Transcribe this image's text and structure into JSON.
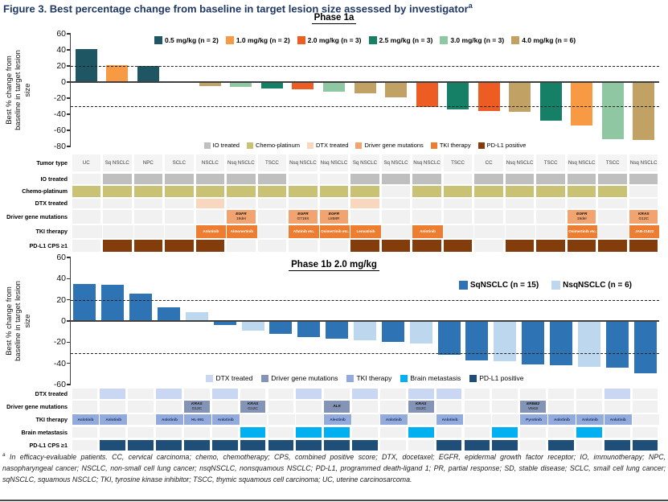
{
  "title": {
    "text": "Figure 3. Best percentage change from baseline in target lesion size assessed by investigator",
    "superscript": "a"
  },
  "footnote": {
    "superscript": "a",
    "text": "In efficacy-evaluable patients. CC, cervical carcinoma; chemo, chemotherapy; CPS, combined positive score; DTX, docetaxel; EGFR, epidermal growth factor receptor; IO, immunotherapy; NPC, nasopharyngeal cancer; NSCLC, non-small cell lung cancer; nsqNSCLC, nonsquamous NSCLC; PD-L1, programmed death-ligand 1; PR, partial response; SD, stable disease; SCLC, small cell lung cancer; sqNSCLC, squamous NSCLC; TKI, tyrosine kinase inhibitor; TSCC, thymic squamous cell carcinoma; UC, uterine carcinosarcoma."
  },
  "colors": {
    "title_navy": "#1F3864",
    "empty_cell": "#F1F1F1",
    "axis": "#404040"
  },
  "chart_data": [
    {
      "id": "phase1a",
      "type": "bar",
      "title": "Phase 1a",
      "ylabel": "Best % change from\nbaseline in target lesion\nsize",
      "ylim": [
        -80,
        60
      ],
      "yticks": [
        60,
        40,
        20,
        0,
        -20,
        -40,
        -60,
        -80
      ],
      "reference_lines": [
        20,
        -30
      ],
      "grid": false,
      "legend_position": "top-center",
      "dose_legend": [
        {
          "label": "0.5 mg/kg (n = 2)",
          "dose": "0.5",
          "color": "#1F5664"
        },
        {
          "label": "1.0 mg/kg (n = 2)",
          "dose": "1.0",
          "color": "#F79A43"
        },
        {
          "label": "2.0 mg/kg (n = 3)",
          "dose": "2.0",
          "color": "#EC5C23"
        },
        {
          "label": "2.5 mg/kg (n = 3)",
          "dose": "2.5",
          "color": "#158066"
        },
        {
          "label": "3.0 mg/kg (n = 3)",
          "dose": "3.0",
          "color": "#8FC7A3"
        },
        {
          "label": "4.0 mg/kg (n = 6)",
          "dose": "4.0",
          "color": "#C2A264"
        }
      ],
      "bars": [
        {
          "value": 41,
          "dose": "0.5"
        },
        {
          "value": 21,
          "dose": "1.0"
        },
        {
          "value": 20,
          "dose": "0.5"
        },
        {
          "value": 0,
          "dose": "4.0"
        },
        {
          "value": -5,
          "dose": "4.0"
        },
        {
          "value": -6,
          "dose": "3.0"
        },
        {
          "value": -8,
          "dose": "2.5"
        },
        {
          "value": -9,
          "dose": "2.0"
        },
        {
          "value": -12,
          "dose": "3.0"
        },
        {
          "value": -14,
          "dose": "4.0"
        },
        {
          "value": -19,
          "dose": "4.0"
        },
        {
          "value": -31,
          "dose": "2.0"
        },
        {
          "value": -34,
          "dose": "2.5"
        },
        {
          "value": -36,
          "dose": "2.0"
        },
        {
          "value": -37,
          "dose": "4.0"
        },
        {
          "value": -48,
          "dose": "2.5"
        },
        {
          "value": -54,
          "dose": "1.0"
        },
        {
          "value": -71,
          "dose": "3.0"
        },
        {
          "value": -72,
          "dose": "4.0"
        }
      ],
      "attr_legend": [
        {
          "label": "IO treated",
          "color": "#BFBFBF"
        },
        {
          "label": "Chemo-platinum",
          "color": "#C9C173"
        },
        {
          "label": "DTX treated",
          "color": "#F8D7BE"
        },
        {
          "label": "Driver gene mutations",
          "color": "#F2A470"
        },
        {
          "label": "TKI therapy",
          "color": "#ED7D31"
        },
        {
          "label": "PD-L1 positive",
          "color": "#833C0C"
        }
      ],
      "table": {
        "tumor": {
          "label": "Tumor type",
          "cells": [
            "UC",
            "Sq NSCLC",
            "NPC",
            "SCLC",
            "NSCLC",
            "Nsq NSCLC",
            "TSCC",
            "Nsq NSCLC",
            "Nsq NSCLC",
            "Sq NSCLC",
            "Sq NSCLC",
            "Nsq NSCLC",
            "TSCC",
            "CC",
            "Nsq NSCLC",
            "TSCC",
            "Nsq NSCLC",
            "TSCC",
            "Nsq NSCLC"
          ]
        },
        "io": {
          "label": "IO treated",
          "color": "#BFBFBF",
          "flags": [
            0,
            1,
            1,
            1,
            1,
            1,
            1,
            0,
            0,
            1,
            1,
            1,
            0,
            1,
            1,
            1,
            1,
            1,
            1
          ]
        },
        "chemo": {
          "label": "Chemo-platinum",
          "color": "#C9C173",
          "flags": [
            1,
            1,
            1,
            1,
            1,
            1,
            1,
            1,
            1,
            1,
            0,
            1,
            1,
            1,
            1,
            1,
            1,
            1,
            0
          ]
        },
        "dtx": {
          "label": "DTX treated",
          "color": "#F8D7BE",
          "flags": [
            0,
            0,
            0,
            0,
            1,
            0,
            0,
            0,
            0,
            1,
            0,
            0,
            0,
            0,
            0,
            0,
            0,
            0,
            0
          ]
        },
        "driver": {
          "label": "Driver gene mutations",
          "color": "#F2A470",
          "cells": [
            "",
            "",
            "",
            "",
            "",
            "EGFR 19del",
            "",
            "EGFR G719X",
            "EGFR L858R",
            "",
            "",
            "",
            "",
            "",
            "",
            "",
            "EGFR 19del",
            "",
            "KRAS G12C"
          ]
        },
        "tki": {
          "label": "TKI therapy",
          "color": "#ED7D31",
          "text_color": "#FFFFFF",
          "cells": [
            "",
            "",
            "",
            "",
            "Anlotinib",
            "Almonertinib",
            "",
            "Afatinib etc.",
            "Osimertinib etc.",
            "Lenvatinib",
            "",
            "Anlotinib",
            "",
            "",
            "",
            "",
            "Osimertinib etc.",
            "",
            "JAB-21822"
          ]
        },
        "pdl1": {
          "label": "PD-L1 CPS ≥1",
          "color": "#833C0C",
          "flags": [
            0,
            1,
            1,
            1,
            1,
            0,
            0,
            0,
            0,
            1,
            1,
            1,
            1,
            0,
            1,
            1,
            1,
            1,
            1
          ]
        }
      }
    },
    {
      "id": "phase1b",
      "type": "bar",
      "title": "Phase 1b 2.0 mg/kg",
      "ylabel": "Best % change from\nbaseline in target lesion\nsize",
      "ylim": [
        -60,
        60
      ],
      "yticks": [
        60,
        40,
        20,
        0,
        -20,
        -40,
        -60
      ],
      "reference_lines": [
        20,
        -30
      ],
      "grid": false,
      "legend_position": "top-right",
      "series_legend": [
        {
          "label": "SqNSCLC (n = 15)",
          "group": "sq",
          "color": "#2E74B5"
        },
        {
          "label": "NsqNSCLC (n = 6)",
          "group": "nsq",
          "color": "#BDD7EE"
        }
      ],
      "bars": [
        {
          "value": 35,
          "group": "sq"
        },
        {
          "value": 34,
          "group": "sq"
        },
        {
          "value": 26,
          "group": "sq"
        },
        {
          "value": 13,
          "group": "sq"
        },
        {
          "value": 8,
          "group": "nsq"
        },
        {
          "value": -4,
          "group": "sq"
        },
        {
          "value": -9,
          "group": "nsq"
        },
        {
          "value": -12,
          "group": "sq"
        },
        {
          "value": -15,
          "group": "sq"
        },
        {
          "value": -17,
          "group": "sq"
        },
        {
          "value": -18,
          "group": "nsq"
        },
        {
          "value": -20,
          "group": "sq"
        },
        {
          "value": -21,
          "group": "nsq"
        },
        {
          "value": -32,
          "group": "sq"
        },
        {
          "value": -37,
          "group": "sq"
        },
        {
          "value": -38,
          "group": "nsq"
        },
        {
          "value": -41,
          "group": "sq"
        },
        {
          "value": -42,
          "group": "sq"
        },
        {
          "value": -43,
          "group": "nsq"
        },
        {
          "value": -44,
          "group": "sq"
        },
        {
          "value": -49,
          "group": "sq"
        }
      ],
      "attr_legend": [
        {
          "label": "DTX treated",
          "color": "#C9D7F2"
        },
        {
          "label": "Driver gene mutations",
          "color": "#8494B6"
        },
        {
          "label": "TKI therapy",
          "color": "#93AADD"
        },
        {
          "label": "Brain metastasis",
          "color": "#00B0F0"
        },
        {
          "label": "PD-L1 positive",
          "color": "#1F4E79"
        }
      ],
      "table": {
        "dtx": {
          "label": "DTX treated",
          "color": "#C9D7F2",
          "flags": [
            0,
            1,
            0,
            1,
            0,
            1,
            0,
            0,
            1,
            0,
            1,
            0,
            1,
            1,
            0,
            0,
            0,
            0,
            0,
            1,
            0
          ]
        },
        "driver": {
          "label": "Driver gene mutations",
          "color": "#8494B6",
          "cells": [
            "",
            "",
            "",
            "",
            "KRAS G12C",
            "",
            "KRAS G12C",
            "",
            "",
            "ALK",
            "",
            "",
            "KRAS G12C",
            "",
            "",
            "",
            "ERBB2 V842I",
            "",
            "",
            "",
            ""
          ]
        },
        "tki": {
          "label": "TKI therapy",
          "color": "#93AADD",
          "text_color": "#16305E",
          "cells": [
            "Anlotinib",
            "Anlotinib",
            "",
            "Anlotinib",
            "HL-091",
            "Anlotinib",
            "",
            "",
            "",
            "Alectinib",
            "",
            "Anlotinib",
            "",
            "Anlotinib",
            "",
            "",
            "Pyrotinib",
            "Anlotinib",
            "Anlotinib",
            "Anlotinib",
            ""
          ]
        },
        "brain": {
          "label": "Brain metastasis",
          "color": "#00B0F0",
          "flags": [
            0,
            0,
            0,
            0,
            0,
            0,
            1,
            0,
            1,
            1,
            0,
            0,
            1,
            0,
            0,
            1,
            0,
            0,
            1,
            0,
            0
          ]
        },
        "pdl1": {
          "label": "PD-L1 CPS ≥1",
          "color": "#1F4E79",
          "flags": [
            0,
            1,
            1,
            1,
            1,
            1,
            1,
            1,
            1,
            1,
            1,
            0,
            0,
            1,
            1,
            1,
            0,
            1,
            0,
            1,
            1
          ]
        }
      }
    }
  ]
}
